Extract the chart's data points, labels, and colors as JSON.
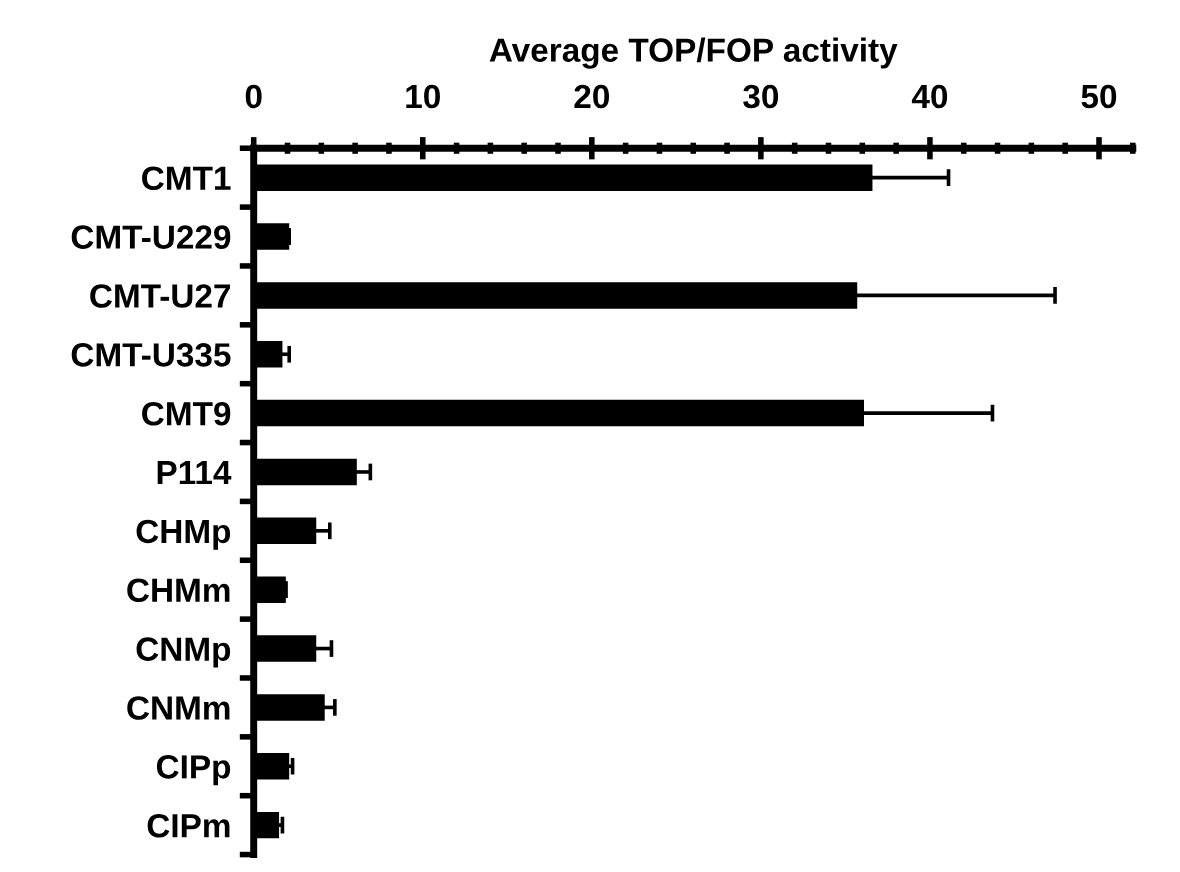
{
  "chart_data": {
    "type": "bar",
    "orientation": "horizontal",
    "xlabel": "Average TOP/FOP activity",
    "categories": [
      "CMT1",
      "CMT-U229",
      "CMT-U27",
      "CMT-U335",
      "CMT9",
      "P114",
      "CHMp",
      "CHMm",
      "CNMp",
      "CNMm",
      "CIPp",
      "CIPm"
    ],
    "values": [
      36.6,
      2.1,
      35.7,
      1.7,
      36.1,
      6.1,
      3.7,
      1.9,
      3.7,
      4.2,
      2.1,
      1.5
    ],
    "errors": [
      4.5,
      null,
      11.7,
      0.4,
      7.6,
      0.8,
      0.8,
      null,
      0.9,
      0.6,
      0.2,
      0.2
    ],
    "color": "#000000",
    "xlim": [
      0,
      52
    ],
    "xticks": [
      0,
      {
        "value": 2,
        "label": null
      },
      {
        "value": 4,
        "label": null
      },
      {
        "value": 6,
        "label": null
      },
      {
        "value": 8,
        "label": null
      },
      10,
      {
        "value": 12,
        "label": null
      },
      {
        "value": 14,
        "label": null
      },
      {
        "value": 16,
        "label": null
      },
      {
        "value": 18,
        "label": null
      },
      20,
      {
        "value": 22,
        "label": null
      },
      {
        "value": 24,
        "label": null
      },
      {
        "value": 26,
        "label": null
      },
      {
        "value": 28,
        "label": null
      },
      30,
      {
        "value": 32,
        "label": null
      },
      {
        "value": 34,
        "label": null
      },
      {
        "value": 36,
        "label": null
      },
      {
        "value": 38,
        "label": null
      },
      40,
      {
        "value": 42,
        "label": null
      },
      {
        "value": 44,
        "label": null
      },
      {
        "value": 46,
        "label": null
      },
      {
        "value": 48,
        "label": null
      },
      50,
      {
        "value": 52,
        "label": null
      }
    ],
    "grid": false,
    "legend": false
  }
}
